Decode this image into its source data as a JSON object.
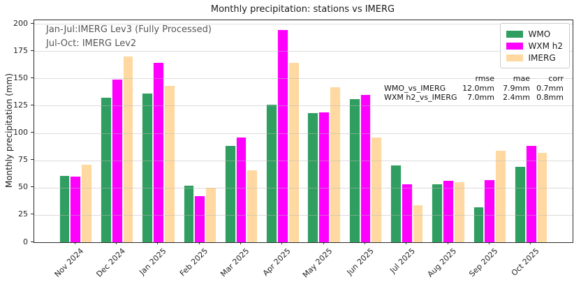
{
  "chart_data": {
    "type": "bar",
    "title": "Monthly precipitation: stations vs IMERG",
    "xlabel": "",
    "ylabel": "Monthly precipitation (mm)",
    "ylim": [
      0,
      200
    ],
    "yticks": [
      0,
      25,
      50,
      75,
      100,
      125,
      150,
      175,
      200
    ],
    "grid": true,
    "legend_position": "upper right",
    "categories": [
      "Nov 2024",
      "Dec 2024",
      "Jan 2025",
      "Feb 2025",
      "Mar 2025",
      "Apr 2025",
      "May 2025",
      "Jun 2025",
      "Jul 2025",
      "Aug 2025",
      "Sep 2025",
      "Oct 2025"
    ],
    "series": [
      {
        "name": "WMO",
        "color": "#2f9e60",
        "values": [
          61,
          132,
          136,
          52,
          88,
          126,
          118,
          131,
          70,
          53,
          32,
          69
        ]
      },
      {
        "name": "WXM h2",
        "color": "#ff00ff",
        "values": [
          60,
          149,
          164,
          42,
          96,
          194,
          119,
          135,
          53,
          56,
          57,
          88
        ]
      },
      {
        "name": "IMERG",
        "color": "#ffd9a1",
        "values": [
          71,
          170,
          143,
          50,
          66,
          164,
          142,
          96,
          34,
          55,
          84,
          82
        ]
      }
    ],
    "annotations": [
      "Jan-Jul:IMERG Lev3 (Fully Processed)",
      "Jul-Oct: IMERG Lev2"
    ],
    "stats_table": {
      "columns": [
        "rmse",
        "mae",
        "corr"
      ],
      "rows": [
        {
          "label": "WMO_vs_IMERG",
          "rmse": "12.0mm",
          "mae": "7.9mm",
          "corr": "0.7mm"
        },
        {
          "label": "WXM h2_vs_IMERG",
          "rmse": "7.0mm",
          "mae": "2.4mm",
          "corr": "0.8mm"
        }
      ]
    }
  }
}
